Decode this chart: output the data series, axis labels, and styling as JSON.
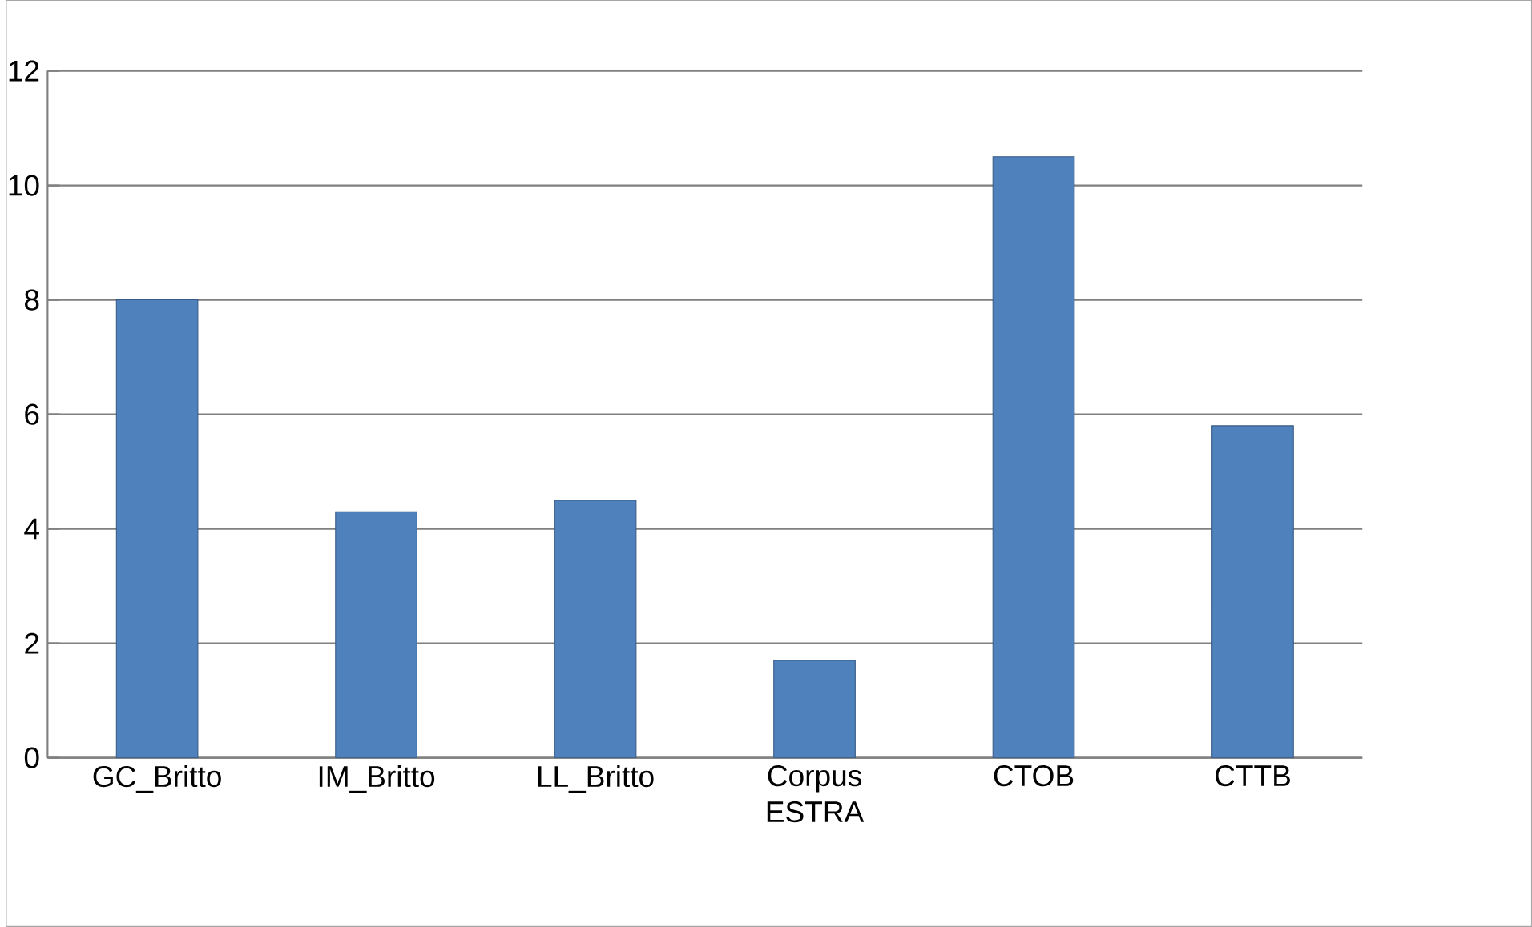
{
  "chart_data": {
    "type": "bar",
    "categories": [
      "GC_Britto",
      "IM_Britto",
      "LL_Britto",
      "Corpus ESTRA",
      "CTOB",
      "CTTB"
    ],
    "values": [
      8,
      4.3,
      4.5,
      1.7,
      10.5,
      5.8
    ],
    "color": "#4f81bd",
    "ylim": [
      0,
      12
    ],
    "yticks": [
      0,
      2,
      4,
      6,
      8,
      10,
      12
    ],
    "grid": "y"
  }
}
